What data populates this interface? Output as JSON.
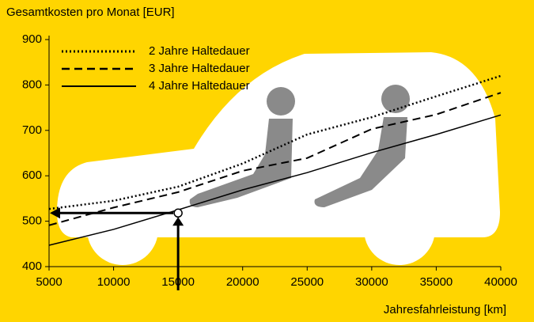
{
  "chart_data": {
    "type": "line",
    "title": "Gesamtkosten pro Monat [EUR]",
    "x_label": "Jahresfahrleistung [km]",
    "x": [
      5000,
      10000,
      15000,
      20000,
      25000,
      30000,
      35000,
      40000
    ],
    "series": [
      {
        "name": "2 Jahre Haltedauer",
        "color": "#000000",
        "dash": "dotted",
        "values": [
          527,
          545,
          576,
          627,
          691,
          729,
          775,
          820
        ]
      },
      {
        "name": "3 Jahre Haltedauer",
        "color": "#000000",
        "dash": "dashed",
        "values": [
          491,
          530,
          564,
          611,
          639,
          703,
          735,
          783
        ]
      },
      {
        "name": "4 Jahre Haltedauer",
        "color": "#000000",
        "dash": "solid",
        "values": [
          447,
          482,
          525,
          569,
          607,
          651,
          691,
          734
        ]
      }
    ],
    "highlight": {
      "x": 15000,
      "y": 518
    },
    "xlim": [
      5000,
      40000
    ],
    "xticks": [
      5000,
      10000,
      15000,
      20000,
      25000,
      30000,
      35000,
      40000
    ],
    "ylim": [
      400,
      900
    ],
    "yticks": [
      400,
      500,
      600,
      700,
      800,
      900
    ],
    "legend": "top-left"
  }
}
